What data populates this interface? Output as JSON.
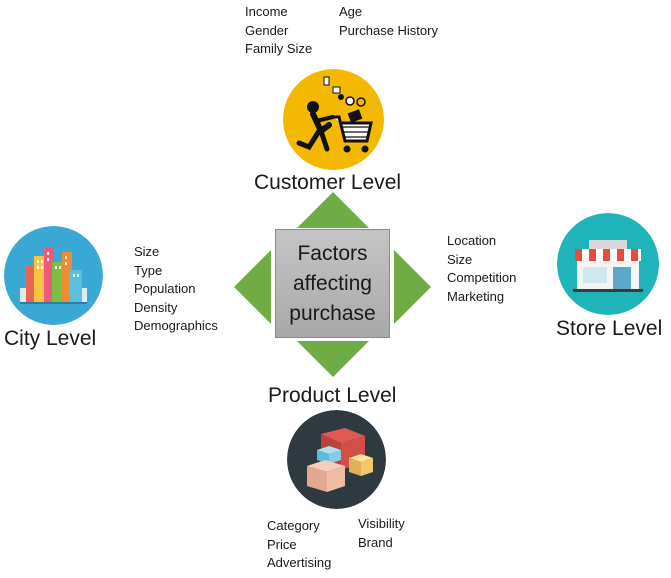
{
  "center": {
    "line1": "Factors",
    "line2": "affecting",
    "line3": "purchase"
  },
  "customer": {
    "title": "Customer Level",
    "col1": [
      "Income",
      "Gender",
      "Family Size"
    ],
    "col2": [
      "Age",
      "Purchase History"
    ],
    "icon": "shopping-cart-icon"
  },
  "city": {
    "title": "City Level",
    "factors": [
      "Size",
      "Type",
      "Population",
      "Density",
      "Demographics"
    ],
    "icon": "city-buildings-icon"
  },
  "store": {
    "title": "Store Level",
    "factors": [
      "Location",
      "Size",
      "Competition",
      "Marketing"
    ],
    "icon": "storefront-icon"
  },
  "product": {
    "title": "Product Level",
    "col1": [
      "Category",
      "Price",
      "Advertising"
    ],
    "col2": [
      "Visibility",
      "Brand"
    ],
    "icon": "boxes-icon"
  },
  "colors": {
    "arrow": "#6fac46",
    "center_box": "#b3b3b3",
    "customer_bg": "#f5b800",
    "city_bg": "#3aa9d6",
    "store_bg": "#1fb4ba",
    "product_bg": "#2f3a40"
  }
}
